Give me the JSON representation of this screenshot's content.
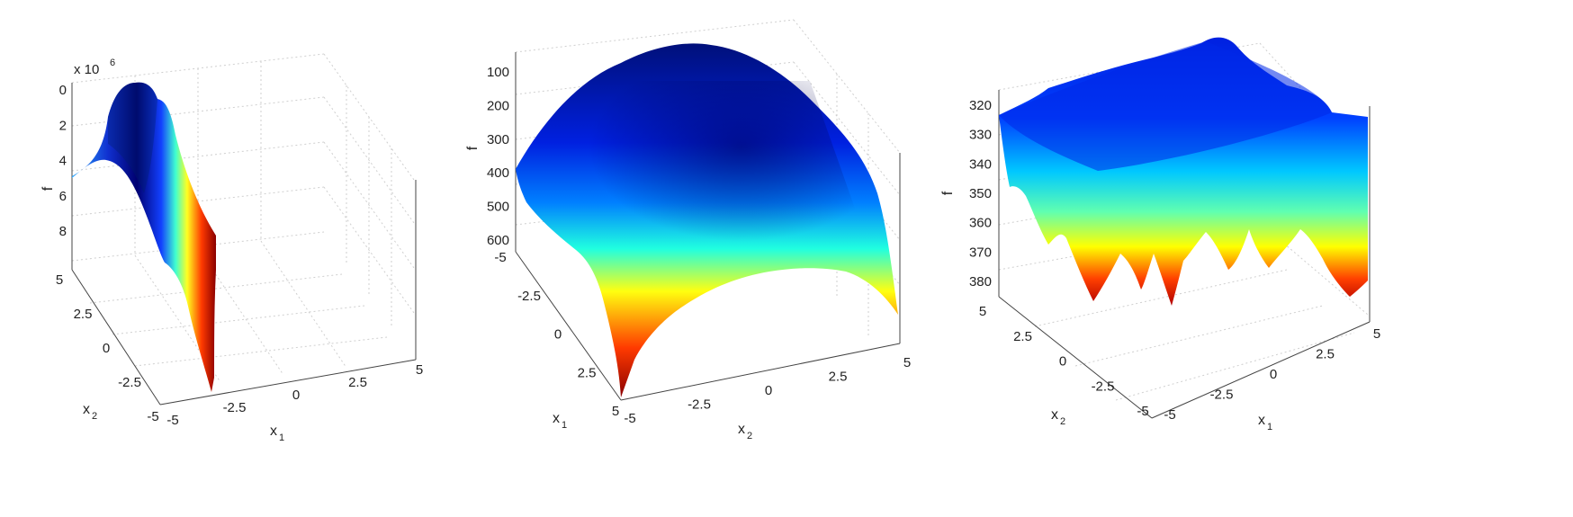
{
  "chart_data": [
    {
      "type": "surface",
      "zlabel": "f",
      "zlabel_multiplier": "x 10",
      "zlabel_exponent": "6",
      "x1_label": "x",
      "x1_sub": "1",
      "x2_label": "x",
      "x2_sub": "2",
      "x1_ticks": [
        "-5",
        "-2.5",
        "0",
        "2.5",
        "5"
      ],
      "x2_ticks": [
        "5",
        "2.5",
        "0",
        "-2.5",
        "-5"
      ],
      "z_ticks": [
        "0",
        "2",
        "4",
        "6",
        "8"
      ],
      "x1_range": [
        -5,
        5
      ],
      "x2_range": [
        -5,
        5
      ],
      "z_range": [
        0,
        9
      ],
      "z_reversed": true,
      "colormap": "jet"
    },
    {
      "type": "surface",
      "zlabel": "f",
      "x1_label": "x",
      "x1_sub": "1",
      "x2_label": "x",
      "x2_sub": "2",
      "x1_ticks": [
        "-5",
        "-2.5",
        "0",
        "2.5",
        "5"
      ],
      "x2_ticks": [
        "-5",
        "-2.5",
        "0",
        "2.5",
        "5"
      ],
      "z_ticks": [
        "100",
        "200",
        "300",
        "400",
        "500",
        "600"
      ],
      "x1_range": [
        -5,
        5
      ],
      "x2_range": [
        -5,
        5
      ],
      "z_range": [
        50,
        620
      ],
      "z_reversed": true,
      "colormap": "jet"
    },
    {
      "type": "surface",
      "zlabel": "f",
      "x1_label": "x",
      "x1_sub": "1",
      "x2_label": "x",
      "x2_sub": "2",
      "x1_ticks": [
        "-5",
        "-2.5",
        "0",
        "2.5",
        "5"
      ],
      "x2_ticks": [
        "5",
        "2.5",
        "0",
        "-2.5",
        "-5"
      ],
      "z_ticks": [
        "320",
        "330",
        "340",
        "350",
        "360",
        "370",
        "380"
      ],
      "x1_range": [
        -5,
        5
      ],
      "x2_range": [
        -5,
        5
      ],
      "z_range": [
        312,
        384
      ],
      "z_reversed": true,
      "colormap": "jet"
    }
  ]
}
